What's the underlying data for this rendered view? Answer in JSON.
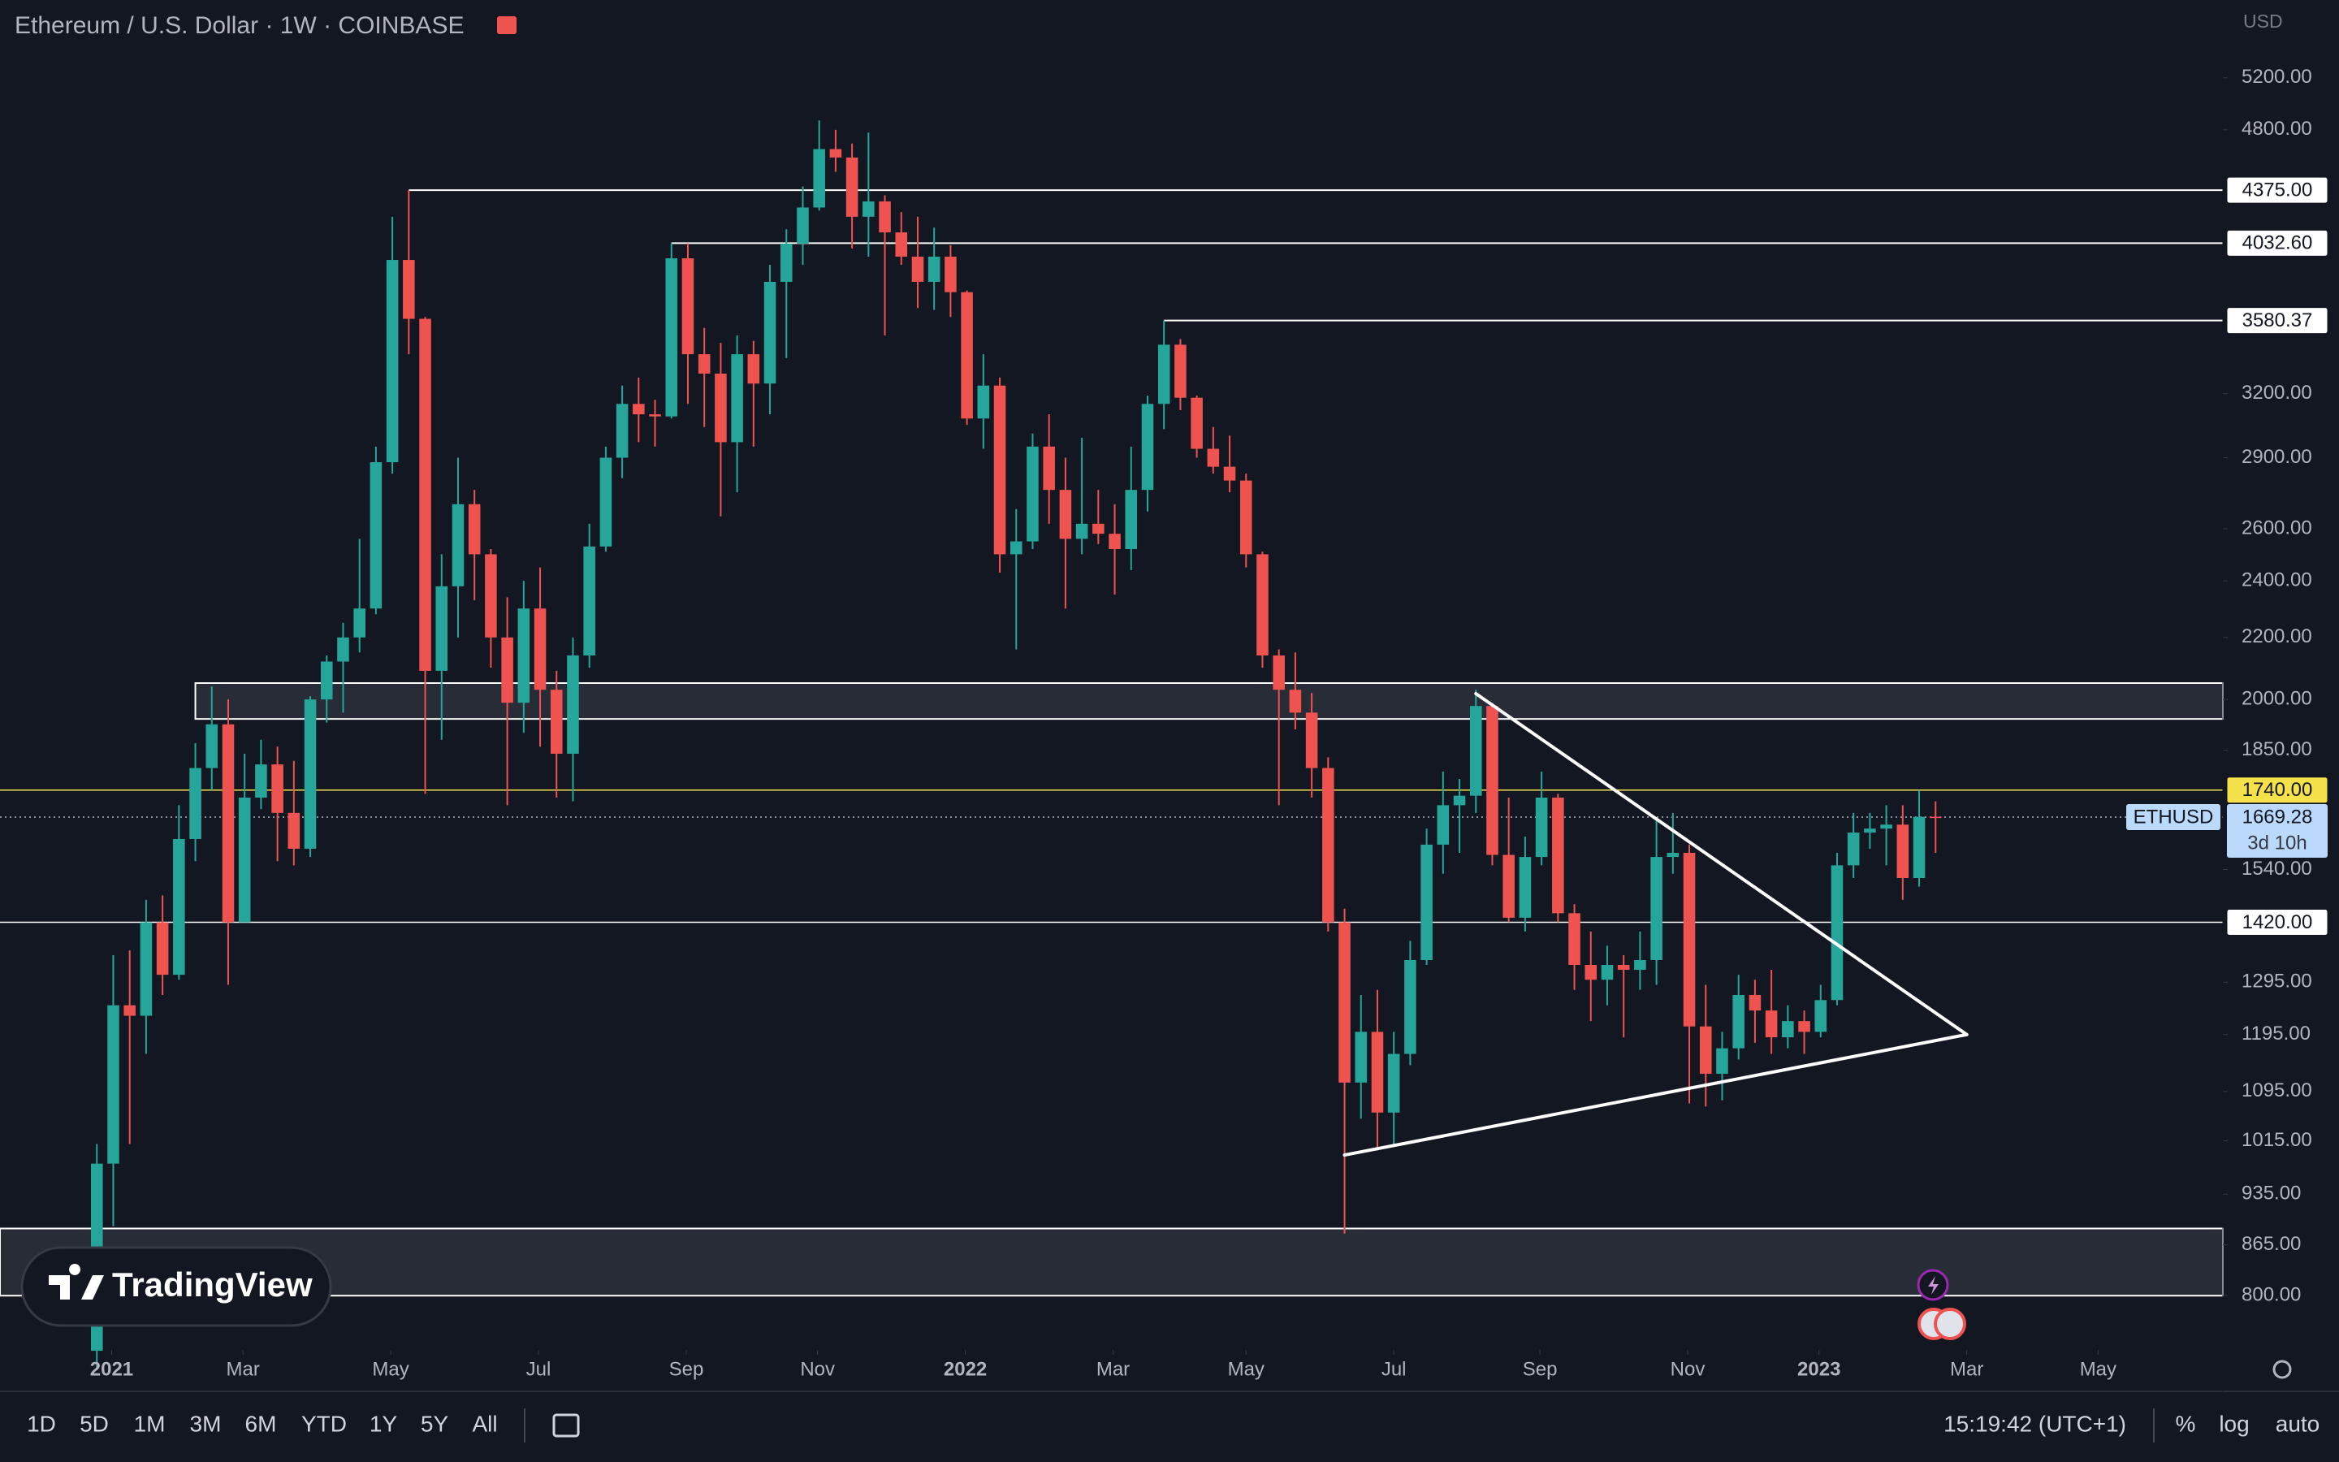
{
  "chart_data": {
    "type": "candlestick",
    "title": "Ethereum / U.S. Dollar · 1W · COINBASE",
    "currency": "USD",
    "symbol": "ETHUSD",
    "countdown": "3d 10h",
    "log_scale": true,
    "grid": false,
    "up_color": "#26a69a",
    "down_color": "#ef5350",
    "ylim": [
      736,
      5860
    ],
    "yticks": [
      {
        "value": 5200,
        "label": "5200.00"
      },
      {
        "value": 4800,
        "label": "4800.00"
      },
      {
        "value": 3200,
        "label": "3200.00"
      },
      {
        "value": 2900,
        "label": "2900.00"
      },
      {
        "value": 2600,
        "label": "2600.00"
      },
      {
        "value": 2400,
        "label": "2400.00"
      },
      {
        "value": 2200,
        "label": "2200.00"
      },
      {
        "value": 2000,
        "label": "2000.00"
      },
      {
        "value": 1850,
        "label": "1850.00"
      },
      {
        "value": 1540,
        "label": "1540.00"
      },
      {
        "value": 1295,
        "label": "1295.00"
      },
      {
        "value": 1195,
        "label": "1195.00"
      },
      {
        "value": 1095,
        "label": "1095.00"
      },
      {
        "value": 1015,
        "label": "1015.00"
      },
      {
        "value": 935,
        "label": "935.00"
      },
      {
        "value": 865,
        "label": "865.00"
      },
      {
        "value": 800,
        "label": "800.00"
      }
    ],
    "xlim": [
      -5.9,
      129.5
    ],
    "xticks": [
      {
        "value": 0.9,
        "label": "2021"
      },
      {
        "value": 8.9,
        "label": "Mar"
      },
      {
        "value": 17.9,
        "label": "May"
      },
      {
        "value": 26.9,
        "label": "Jul"
      },
      {
        "value": 35.9,
        "label": "Sep"
      },
      {
        "value": 43.9,
        "label": "Nov"
      },
      {
        "value": 52.9,
        "label": "2022"
      },
      {
        "value": 61.9,
        "label": "Mar"
      },
      {
        "value": 70,
        "label": "May"
      },
      {
        "value": 79,
        "label": "Jul"
      },
      {
        "value": 87.9,
        "label": "Sep"
      },
      {
        "value": 96.9,
        "label": "Nov"
      },
      {
        "value": 104.9,
        "label": "2023"
      },
      {
        "value": 113.9,
        "label": "Mar"
      },
      {
        "value": 121.9,
        "label": "May"
      }
    ],
    "ohlc": [
      [
        735,
        1010,
        715,
        980
      ],
      [
        980,
        1350,
        890,
        1250
      ],
      [
        1250,
        1360,
        1010,
        1230
      ],
      [
        1230,
        1470,
        1160,
        1420
      ],
      [
        1420,
        1480,
        1270,
        1310
      ],
      [
        1310,
        1700,
        1300,
        1614
      ],
      [
        1614,
        1870,
        1560,
        1800
      ],
      [
        1800,
        2040,
        1740,
        1925
      ],
      [
        1925,
        2000,
        1290,
        1420
      ],
      [
        1420,
        1840,
        1420,
        1720
      ],
      [
        1720,
        1880,
        1690,
        1810
      ],
      [
        1810,
        1860,
        1560,
        1680
      ],
      [
        1680,
        1820,
        1550,
        1590
      ],
      [
        1590,
        2010,
        1570,
        2000
      ],
      [
        2000,
        2140,
        1930,
        2120
      ],
      [
        2120,
        2250,
        1960,
        2200
      ],
      [
        2200,
        2560,
        2150,
        2300
      ],
      [
        2300,
        2950,
        2280,
        2880
      ],
      [
        2880,
        4200,
        2830,
        3930
      ],
      [
        3930,
        4375,
        3400,
        3590
      ],
      [
        3590,
        3600,
        1730,
        2090
      ],
      [
        2090,
        2500,
        1880,
        2380
      ],
      [
        2380,
        2900,
        2200,
        2700
      ],
      [
        2700,
        2760,
        2330,
        2500
      ],
      [
        2500,
        2520,
        2100,
        2200
      ],
      [
        2200,
        2340,
        1700,
        1990
      ],
      [
        1990,
        2400,
        1900,
        2300
      ],
      [
        2300,
        2450,
        1860,
        2030
      ],
      [
        2030,
        2090,
        1720,
        1840
      ],
      [
        1840,
        2200,
        1710,
        2140
      ],
      [
        2140,
        2620,
        2100,
        2530
      ],
      [
        2530,
        2950,
        2510,
        2900
      ],
      [
        2900,
        3240,
        2810,
        3150
      ],
      [
        3150,
        3280,
        2970,
        3100
      ],
      [
        3100,
        3170,
        2950,
        3090
      ],
      [
        3090,
        4032.6,
        3080,
        3940
      ],
      [
        3940,
        4032,
        3150,
        3400
      ],
      [
        3400,
        3540,
        3040,
        3300
      ],
      [
        3300,
        3460,
        2650,
        2970
      ],
      [
        2970,
        3500,
        2750,
        3400
      ],
      [
        3400,
        3470,
        2950,
        3250
      ],
      [
        3250,
        3900,
        3100,
        3800
      ],
      [
        3800,
        4120,
        3380,
        4030
      ],
      [
        4030,
        4400,
        3900,
        4260
      ],
      [
        4260,
        4870,
        4240,
        4660
      ],
      [
        4660,
        4800,
        4500,
        4600
      ],
      [
        4600,
        4700,
        4000,
        4200
      ],
      [
        4200,
        4780,
        3950,
        4300
      ],
      [
        4300,
        4340,
        3500,
        4100
      ],
      [
        4100,
        4230,
        3900,
        3950
      ],
      [
        3950,
        4200,
        3650,
        3800
      ],
      [
        3800,
        4130,
        3640,
        3950
      ],
      [
        3950,
        4020,
        3600,
        3740
      ],
      [
        3740,
        3750,
        3050,
        3080
      ],
      [
        3080,
        3400,
        2940,
        3240
      ],
      [
        3240,
        3280,
        2430,
        2500
      ],
      [
        2500,
        2680,
        2160,
        2550
      ],
      [
        2550,
        3010,
        2520,
        2950
      ],
      [
        2950,
        3100,
        2620,
        2760
      ],
      [
        2760,
        2900,
        2300,
        2560
      ],
      [
        2560,
        2990,
        2500,
        2620
      ],
      [
        2620,
        2760,
        2540,
        2580
      ],
      [
        2580,
        2700,
        2350,
        2520
      ],
      [
        2520,
        2950,
        2440,
        2760
      ],
      [
        2760,
        3190,
        2670,
        3150
      ],
      [
        3150,
        3580.37,
        3030,
        3450
      ],
      [
        3450,
        3480,
        3120,
        3180
      ],
      [
        3180,
        3190,
        2900,
        2940
      ],
      [
        2940,
        3040,
        2830,
        2860
      ],
      [
        2860,
        3000,
        2750,
        2800
      ],
      [
        2800,
        2830,
        2450,
        2500
      ],
      [
        2500,
        2510,
        2100,
        2140
      ],
      [
        2140,
        2160,
        1700,
        2030
      ],
      [
        2030,
        2150,
        1910,
        1960
      ],
      [
        1960,
        2020,
        1720,
        1800
      ],
      [
        1800,
        1830,
        1400,
        1420
      ],
      [
        1420,
        1450,
        880,
        1110
      ],
      [
        1110,
        1270,
        1050,
        1200
      ],
      [
        1200,
        1280,
        1000,
        1060
      ],
      [
        1060,
        1200,
        1010,
        1160
      ],
      [
        1160,
        1380,
        1140,
        1340
      ],
      [
        1340,
        1640,
        1330,
        1600
      ],
      [
        1600,
        1790,
        1530,
        1700
      ],
      [
        1700,
        1770,
        1580,
        1725
      ],
      [
        1725,
        2030,
        1680,
        1980
      ],
      [
        1980,
        1990,
        1550,
        1575
      ],
      [
        1575,
        1720,
        1420,
        1430
      ],
      [
        1430,
        1620,
        1400,
        1570
      ],
      [
        1570,
        1790,
        1550,
        1720
      ],
      [
        1720,
        1730,
        1420,
        1440
      ],
      [
        1440,
        1460,
        1280,
        1330
      ],
      [
        1330,
        1400,
        1220,
        1300
      ],
      [
        1300,
        1370,
        1250,
        1330
      ],
      [
        1330,
        1350,
        1190,
        1320
      ],
      [
        1320,
        1400,
        1280,
        1340
      ],
      [
        1340,
        1660,
        1290,
        1570
      ],
      [
        1570,
        1680,
        1530,
        1580
      ],
      [
        1580,
        1600,
        1075,
        1210
      ],
      [
        1210,
        1290,
        1070,
        1125
      ],
      [
        1125,
        1200,
        1080,
        1170
      ],
      [
        1170,
        1310,
        1150,
        1270
      ],
      [
        1270,
        1300,
        1180,
        1240
      ],
      [
        1240,
        1320,
        1160,
        1190
      ],
      [
        1190,
        1250,
        1170,
        1220
      ],
      [
        1220,
        1240,
        1160,
        1200
      ],
      [
        1200,
        1290,
        1190,
        1260
      ],
      [
        1260,
        1580,
        1250,
        1550
      ],
      [
        1550,
        1680,
        1520,
        1630
      ],
      [
        1630,
        1680,
        1590,
        1640
      ],
      [
        1640,
        1700,
        1550,
        1650
      ],
      [
        1650,
        1700,
        1470,
        1520
      ],
      [
        1520,
        1740,
        1500,
        1670
      ],
      [
        1670,
        1710,
        1580,
        1669.28
      ]
    ],
    "levels": [
      {
        "value": 4375,
        "label": "4375.00",
        "start": 19,
        "color": "#ffffff"
      },
      {
        "value": 4032.6,
        "label": "4032.60",
        "start": 35,
        "color": "#ffffff"
      },
      {
        "value": 3580.37,
        "label": "3580.37",
        "start": 65,
        "color": "#ffffff"
      },
      {
        "value": 1740,
        "label": "1740.00",
        "color": "#f5e14a"
      },
      {
        "value": 1420,
        "label": "1420.00",
        "color": "#ffffff"
      }
    ],
    "zones": [
      {
        "low": 1941,
        "high": 2051,
        "start": 6
      },
      {
        "low": 800,
        "high": 887
      }
    ],
    "trendlines": [
      {
        "from": [
          84,
          2018
        ],
        "to": [
          113.9,
          1195
        ]
      },
      {
        "from": [
          76,
          993
        ],
        "to": [
          113.9,
          1195
        ]
      }
    ]
  },
  "toolbar": {
    "ranges": [
      "1D",
      "5D",
      "1M",
      "3M",
      "6M",
      "YTD",
      "1Y",
      "5Y",
      "All"
    ],
    "time": "15:19:42 (UTC+1)",
    "options": [
      "%",
      "log",
      "auto"
    ]
  },
  "logo": "TradingView"
}
